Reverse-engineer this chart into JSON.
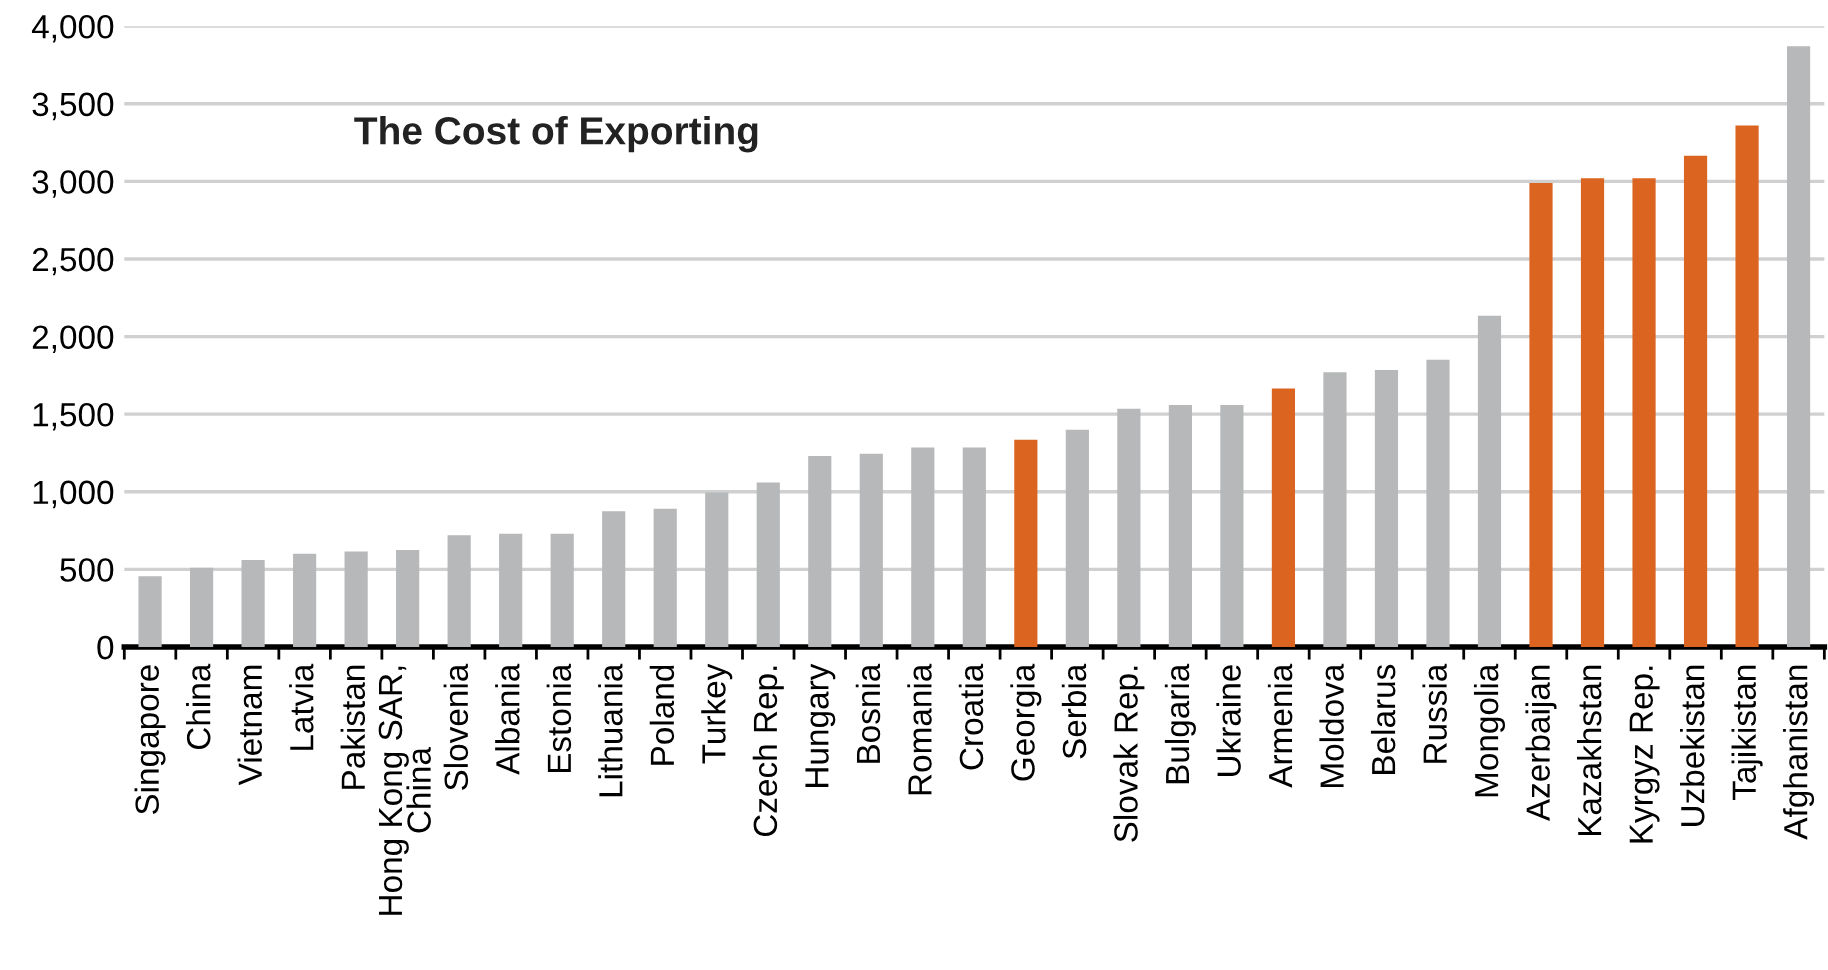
{
  "chart_data": {
    "type": "bar",
    "title": "The Cost of Exporting",
    "categories": [
      "Singapore",
      "China",
      "Vietnam",
      "Latvia",
      "Pakistan",
      "Hong Kong SAR,\nChina",
      "Slovenia",
      "Albania",
      "Estonia",
      "Lithuania",
      "Poland",
      "Turkey",
      "Czech Rep.",
      "Hungary",
      "Bosnia",
      "Romania",
      "Croatia",
      "Georgia",
      "Serbia",
      "Slovak Rep.",
      "Bulgaria",
      "Ukraine",
      "Armenia",
      "Moldova",
      "Belarus",
      "Russia",
      "Mongolia",
      "Azerbaijan",
      "Kazakhstan",
      "Kyrgyz Rep.",
      "Uzbekistan",
      "Tajikistan",
      "Afghanistan"
    ],
    "values": [
      455,
      510,
      560,
      600,
      615,
      625,
      720,
      730,
      730,
      875,
      890,
      995,
      1060,
      1230,
      1245,
      1285,
      1285,
      1335,
      1400,
      1535,
      1560,
      1560,
      1665,
      1770,
      1785,
      1850,
      2135,
      2990,
      3020,
      3020,
      3165,
      3360,
      3870
    ],
    "colors": [
      "#b6b8b9",
      "#b6b8b9",
      "#b6b8b9",
      "#b6b8b9",
      "#b6b8b9",
      "#b6b8b9",
      "#b6b8b9",
      "#b6b8b9",
      "#b6b8b9",
      "#b6b8b9",
      "#b6b8b9",
      "#b6b8b9",
      "#b6b8b9",
      "#b6b8b9",
      "#b6b8b9",
      "#b6b8b9",
      "#b6b8b9",
      "#dc6421",
      "#b6b8b9",
      "#b6b8b9",
      "#b6b8b9",
      "#b6b8b9",
      "#dc6421",
      "#b6b8b9",
      "#b6b8b9",
      "#b6b8b9",
      "#b6b8b9",
      "#dc6421",
      "#dc6421",
      "#dc6421",
      "#dc6421",
      "#dc6421",
      "#b6b8b9"
    ],
    "ylim": [
      0,
      4000
    ],
    "yticks": [
      {
        "value": 0,
        "label": "0"
      },
      {
        "value": 500,
        "label": "500"
      },
      {
        "value": 1000,
        "label": "1,000"
      },
      {
        "value": 1500,
        "label": "1,500"
      },
      {
        "value": 2000,
        "label": "2,000"
      },
      {
        "value": 2500,
        "label": "2,500"
      },
      {
        "value": 3000,
        "label": "3,000"
      },
      {
        "value": 3500,
        "label": "3,500"
      },
      {
        "value": 4000,
        "label": "4,000"
      }
    ],
    "grid": "y"
  }
}
